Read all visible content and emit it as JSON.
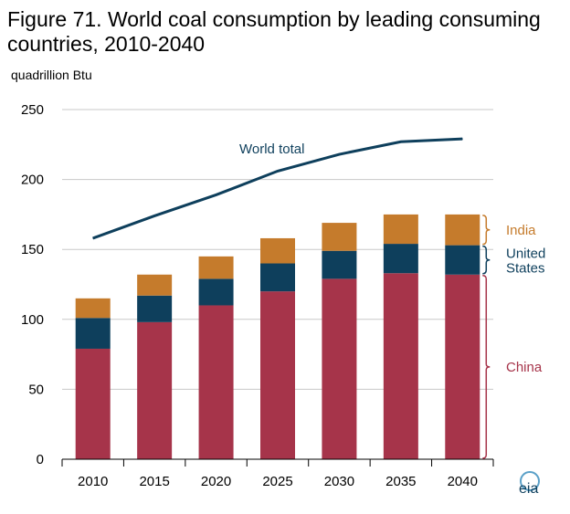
{
  "title": "Figure 71. World coal consumption by leading consuming countries, 2010-2040",
  "unit_label": "quadrillion  Btu",
  "colors": {
    "china": "#A6344A",
    "us": "#0E3F5C",
    "india": "#C57B2C",
    "world": "#0E3F5C",
    "grid": "#c8c8c8"
  },
  "chart_data": {
    "type": "bar",
    "stacked": true,
    "categories": [
      "2010",
      "2015",
      "2020",
      "2025",
      "2030",
      "2035",
      "2040"
    ],
    "series": [
      {
        "name": "China",
        "values": [
          79,
          98,
          110,
          120,
          129,
          133,
          132
        ]
      },
      {
        "name": "United States",
        "values": [
          22,
          19,
          19,
          20,
          20,
          21,
          21
        ]
      },
      {
        "name": "India",
        "values": [
          14,
          15,
          16,
          18,
          20,
          21,
          22
        ]
      }
    ],
    "line": {
      "name": "World total",
      "values": [
        158,
        174,
        189,
        206,
        218,
        227,
        229
      ]
    },
    "ylim": [
      0,
      250
    ],
    "yticks": [
      0,
      50,
      100,
      150,
      200,
      250
    ],
    "grid": true,
    "labels": {
      "world": "World total",
      "india": "India",
      "us_line1": "United",
      "us_line2": "States",
      "china": "China"
    }
  },
  "logo_text": "eia"
}
